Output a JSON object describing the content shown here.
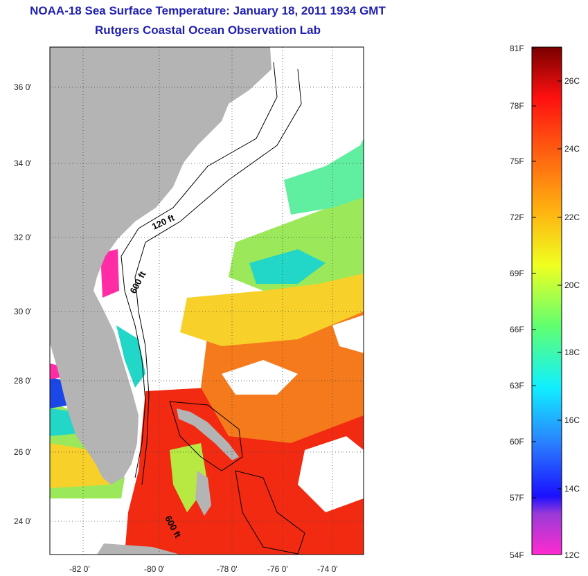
{
  "header": {
    "title": "NOAA-18 Sea Surface Temperature:  January 18, 2011 1934 GMT",
    "subtitle": "Rutgers Coastal Ocean Observation Lab"
  },
  "map": {
    "lat_labels": [
      "36 0'",
      "34 0'",
      "32 0'",
      "30 0'",
      "28 0'",
      "26 0'",
      "24 0'"
    ],
    "lon_labels": [
      "-82 0'",
      "-80 0'",
      "-78 0'",
      "-76 0'",
      "-74 0'"
    ],
    "isobaths": [
      "120 ft",
      "600 ft",
      "600 ft"
    ],
    "colors": {
      "land": "#b4b4b4",
      "cloud": "#ffffff",
      "warm_red": "#f22a12",
      "orange": "#f57a1c",
      "yellow": "#f7d12a",
      "green": "#9be85a",
      "cyan": "#22d6c8",
      "blue": "#1b46e8",
      "magenta": "#ff2ca6"
    }
  },
  "colorbar": {
    "fahrenheit": [
      "81F",
      "78F",
      "75F",
      "72F",
      "69F",
      "66F",
      "63F",
      "60F",
      "57F",
      "54F"
    ],
    "celsius": [
      "26C",
      "24C",
      "22C",
      "20C",
      "18C",
      "16C",
      "14C",
      "12C"
    ]
  }
}
